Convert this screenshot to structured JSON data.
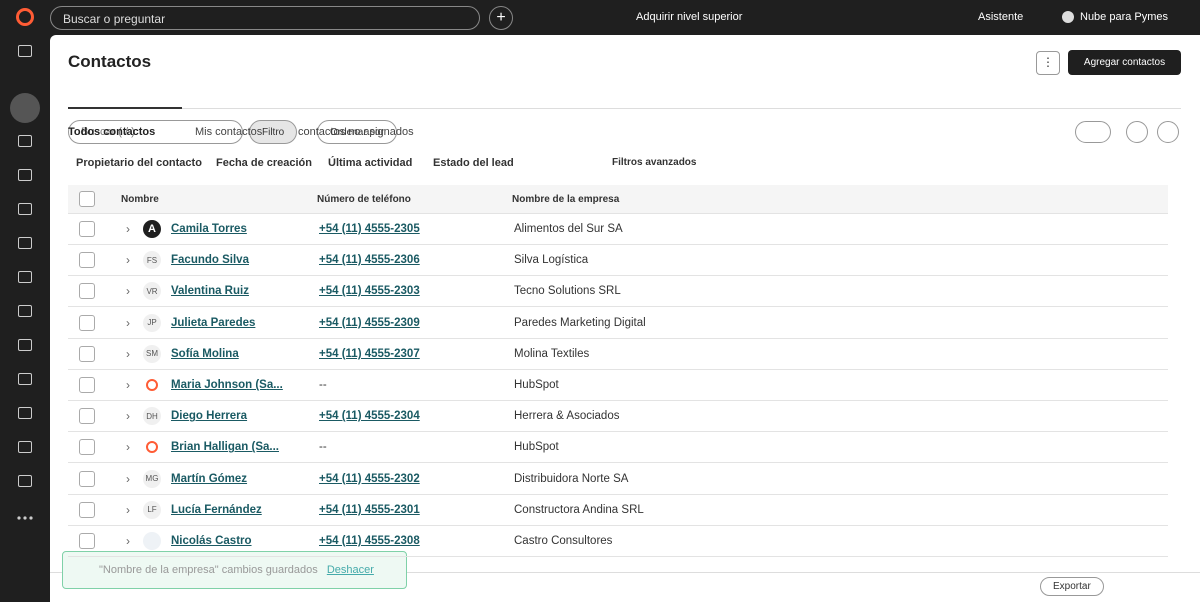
{
  "topbar": {
    "search": "Buscar o preguntar",
    "upgrade": "Adquirir nivel superior",
    "assistant": "Asistente",
    "account": "Nube para Pymes"
  },
  "header": {
    "title": "Contactos",
    "add_button": "Agregar contactos"
  },
  "tabs": [
    "Todos contactos",
    "Mis contactos",
    "contactos no asignados"
  ],
  "toolbar": {
    "search": "Buscar ( / )",
    "filter": "Filtro",
    "sort": "Ordenar por"
  },
  "filters": [
    "Propietario del contacto",
    "Fecha de creación",
    "Última actividad",
    "Estado del lead"
  ],
  "advanced_filters": "Filtros avanzados",
  "table": {
    "columns": [
      "Nombre",
      "Número de teléfono",
      "Nombre de la empresa"
    ],
    "rows": [
      {
        "avatar": "A",
        "name": "Camila Torres",
        "phone": "+54 (11) 4555-2305",
        "company": "Alimentos del Sur SA"
      },
      {
        "avatar": "FS",
        "name": "Facundo Silva",
        "phone": "+54 (11) 4555-2306",
        "company": "Silva Logística"
      },
      {
        "avatar": "VR",
        "name": "Valentina Ruiz",
        "phone": "+54 (11) 4555-2303",
        "company": "Tecno Solutions SRL"
      },
      {
        "avatar": "JP",
        "name": "Julieta Paredes",
        "phone": "+54 (11) 4555-2309",
        "company": "Paredes Marketing Digital"
      },
      {
        "avatar": "SM",
        "name": "Sofía Molina",
        "phone": "+54 (11) 4555-2307",
        "company": "Molina Textiles"
      },
      {
        "name": "Maria Johnson (Sa...",
        "phone": "--",
        "company": "HubSpot"
      },
      {
        "avatar": "DH",
        "name": "Diego Herrera",
        "phone": "+54 (11) 4555-2304",
        "company": "Herrera & Asociados"
      },
      {
        "name": "Brian Halligan (Sa...",
        "phone": "--",
        "company": "HubSpot"
      },
      {
        "avatar": "MG",
        "name": "Martín Gómez",
        "phone": "+54 (11) 4555-2302",
        "company": "Distribuidora Norte SA"
      },
      {
        "avatar": "LF",
        "name": "Lucía Fernández",
        "phone": "+54 (11) 4555-2301",
        "company": "Constructora Andina SRL"
      },
      {
        "name": "Nicolás Castro",
        "phone": "+54 (11) 4555-2308",
        "company": "Castro Consultores"
      }
    ]
  },
  "toast": {
    "message": "\"Nombre de la empresa\" cambios guardados",
    "action": "Deshacer"
  },
  "footer": {
    "export": "Exportar"
  }
}
